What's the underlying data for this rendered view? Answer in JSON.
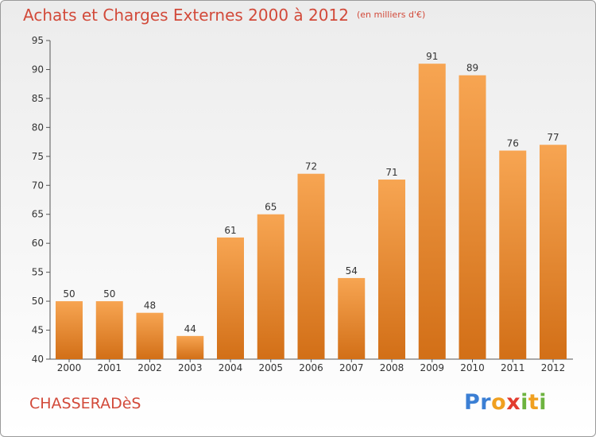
{
  "chart_data": {
    "type": "bar",
    "title": "Achats et Charges Externes 2000 à 2012",
    "subtitle": "(en milliers d'€)",
    "categories": [
      "2000",
      "2001",
      "2002",
      "2003",
      "2004",
      "2005",
      "2006",
      "2007",
      "2008",
      "2009",
      "2010",
      "2011",
      "2012"
    ],
    "values": [
      50,
      50,
      48,
      44,
      61,
      65,
      72,
      54,
      71,
      91,
      89,
      76,
      77
    ],
    "ylim": [
      40,
      95
    ],
    "yticks": [
      40,
      45,
      50,
      55,
      60,
      65,
      70,
      75,
      80,
      85,
      90,
      95
    ],
    "grid": false,
    "xlabel": "",
    "ylabel": ""
  },
  "commune": "CHASSERADèS",
  "brand": {
    "text": "Proxiti",
    "letters": [
      "P",
      "r",
      "o",
      "x",
      "i",
      "t",
      "i"
    ],
    "letter_colors": [
      "#3b7fd4",
      "#3b7fd4",
      "#f0a020",
      "#e23b2e",
      "#6db33f",
      "#f0a020",
      "#6db33f"
    ]
  },
  "colors": {
    "bar_top": "#f7a552",
    "bar_bottom": "#d26f17",
    "title": "#d24a3a"
  }
}
